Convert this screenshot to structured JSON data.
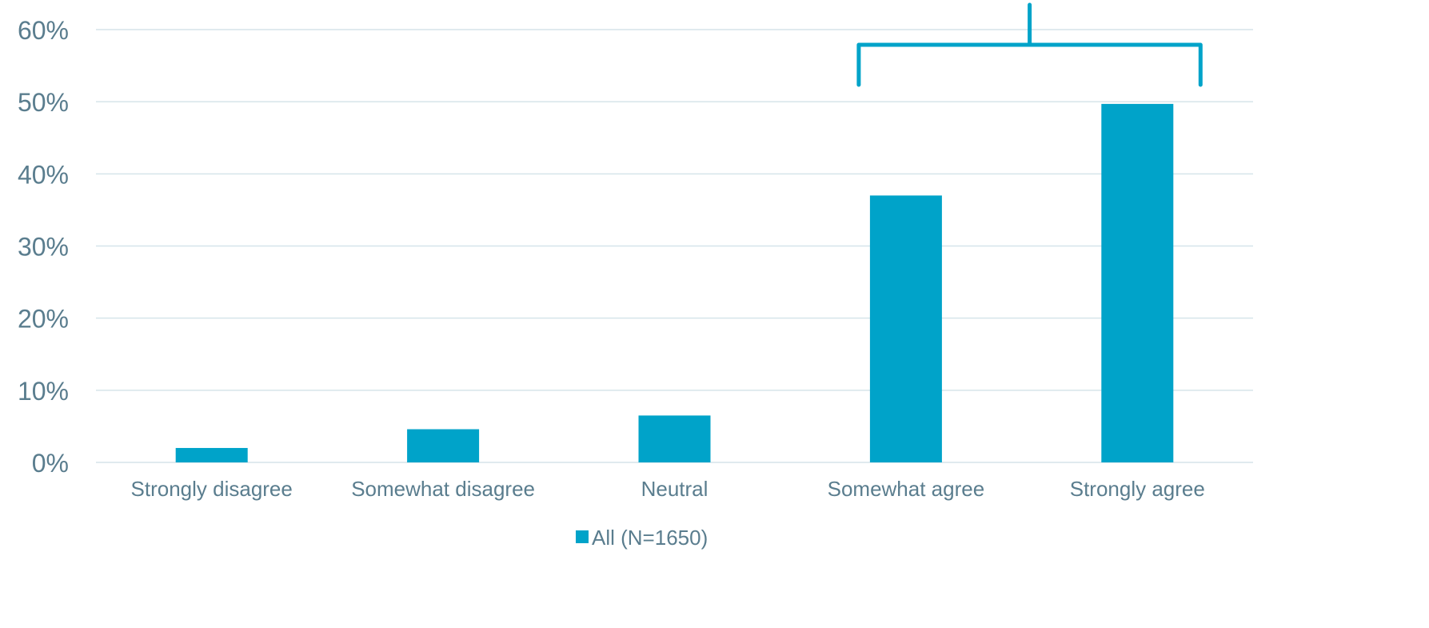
{
  "chart_data": {
    "type": "bar",
    "categories": [
      "Strongly disagree",
      "Somewhat disagree",
      "Neutral",
      "Somewhat agree",
      "Strongly agree"
    ],
    "series": [
      {
        "name": "All (N=1650)",
        "values": [
          2.0,
          4.6,
          6.5,
          37.0,
          49.7
        ]
      }
    ],
    "ylim": [
      0,
      60
    ],
    "yticks": [
      "0%",
      "10%",
      "20%",
      "30%",
      "40%",
      "50%",
      "60%"
    ],
    "ytick_values": [
      0,
      10,
      20,
      30,
      40,
      50,
      60
    ],
    "grid": true,
    "legend_position": "bottom",
    "bracket": {
      "from_category": "Somewhat agree",
      "to_category": "Strongly agree"
    },
    "colors": {
      "bar": "#00a3c9",
      "grid": "#d6e4ea",
      "axis_text": "#5a7d8e",
      "bracket": "#00a3c9"
    }
  }
}
